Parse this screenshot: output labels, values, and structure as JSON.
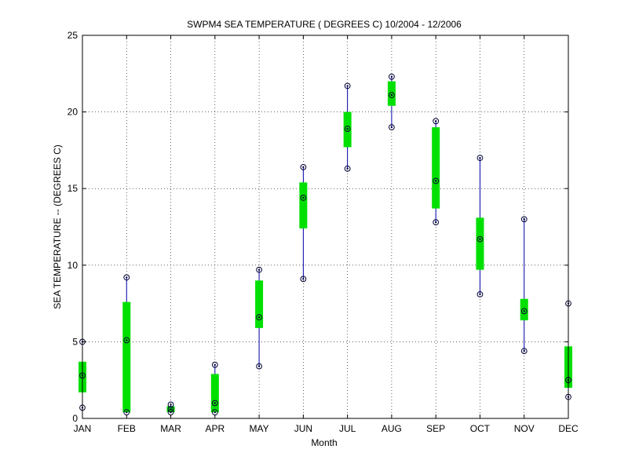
{
  "chart_data": {
    "type": "box",
    "title": "SWPM4  SEA TEMPERATURE ( DEGREES C) 10/2004 - 12/2006",
    "xlabel": "Month",
    "ylabel": "SEA TEMPERATURE -- (DEGREES C)",
    "ylim": [
      0,
      25
    ],
    "yticks": [
      0,
      5,
      10,
      15,
      20,
      25
    ],
    "grid": true,
    "categories": [
      "JAN",
      "FEB",
      "MAR",
      "APR",
      "MAY",
      "JUN",
      "JUL",
      "AUG",
      "SEP",
      "OCT",
      "NOV",
      "DEC"
    ],
    "min": [
      0.7,
      0.4,
      0.4,
      0.4,
      3.4,
      9.1,
      16.3,
      19.0,
      12.8,
      8.1,
      4.4,
      1.4
    ],
    "q1": [
      1.7,
      0.4,
      0.4,
      0.4,
      5.9,
      12.4,
      17.7,
      20.4,
      13.7,
      9.7,
      6.4,
      2.0
    ],
    "median": [
      2.8,
      5.1,
      0.6,
      1.0,
      6.6,
      14.4,
      18.9,
      21.1,
      15.5,
      11.7,
      7.0,
      2.5
    ],
    "q3": [
      3.7,
      7.6,
      0.8,
      2.9,
      9.0,
      15.4,
      20.0,
      22.0,
      19.0,
      13.1,
      7.8,
      4.7
    ],
    "max": [
      5.0,
      9.2,
      0.9,
      3.5,
      9.7,
      16.4,
      21.7,
      22.3,
      19.4,
      17.0,
      13.0,
      7.5
    ],
    "colors": {
      "box": "#00e000",
      "whisker": "#0000aa",
      "marker": "#000033",
      "grid": "#000000"
    }
  }
}
